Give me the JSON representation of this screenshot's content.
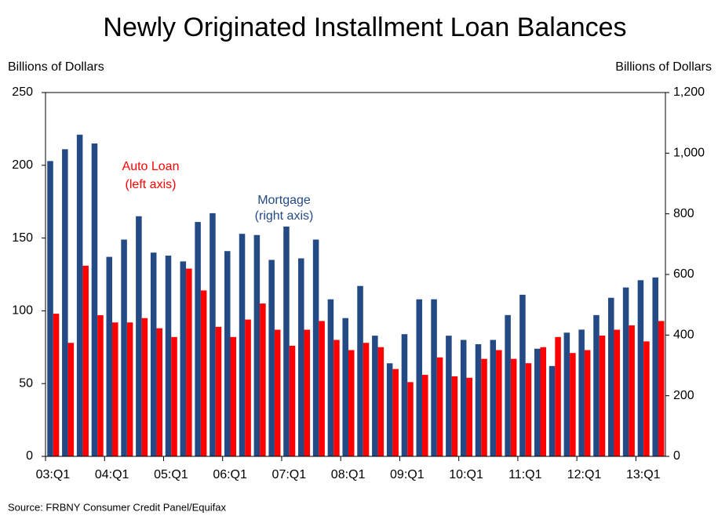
{
  "chart_data": {
    "type": "bar",
    "title": "Newly Originated Installment Loan Balances",
    "y_label": "Billions of Dollars",
    "y2_label": "Billions of Dollars",
    "source": "Source: FRBNY Consumer Credit Panel/Equifax",
    "categories": [
      "03:Q1",
      null,
      null,
      null,
      "04:Q1",
      null,
      null,
      null,
      "05:Q1",
      null,
      null,
      null,
      "06:Q1",
      null,
      null,
      null,
      "07:Q1",
      null,
      null,
      null,
      "08:Q1",
      null,
      null,
      null,
      "09:Q1",
      null,
      null,
      null,
      "10:Q1",
      null,
      null,
      null,
      "11:Q1",
      null,
      null,
      null,
      "12:Q1",
      null,
      null,
      null,
      "13:Q1",
      null
    ],
    "series": [
      {
        "name": "Mortgage",
        "annotation": "(right axis)",
        "axis": "y2",
        "color": "#234a84",
        "values": [
          974,
          1013,
          1061,
          1032,
          658,
          715,
          792,
          672,
          662,
          643,
          773,
          802,
          677,
          734,
          730,
          648,
          758,
          653,
          715,
          518,
          456,
          562,
          398,
          307,
          403,
          518,
          518,
          398,
          384,
          370,
          384,
          466,
          533,
          355,
          298,
          408,
          418,
          466,
          523,
          557,
          581,
          590
        ]
      },
      {
        "name": "Auto Loan",
        "annotation": "(left axis)",
        "axis": "y",
        "color": "#ff0000",
        "values": [
          98,
          78,
          131,
          97,
          92,
          92,
          95,
          88,
          82,
          129,
          114,
          89,
          82,
          94,
          105,
          87,
          76,
          87,
          93,
          80,
          73,
          78,
          75,
          60,
          51,
          56,
          68,
          55,
          54,
          67,
          73,
          67,
          64,
          75,
          82,
          71,
          73,
          83,
          87,
          90,
          79,
          93
        ]
      }
    ],
    "ylim": [
      0,
      250
    ],
    "yticks": [
      0,
      50,
      100,
      150,
      200,
      250
    ],
    "y2lim": [
      0,
      1200
    ],
    "y2ticks": [
      0,
      200,
      400,
      600,
      800,
      {
        "value": 1000,
        "label": "1,000"
      },
      {
        "value": 1200,
        "label": "1,200"
      }
    ]
  }
}
